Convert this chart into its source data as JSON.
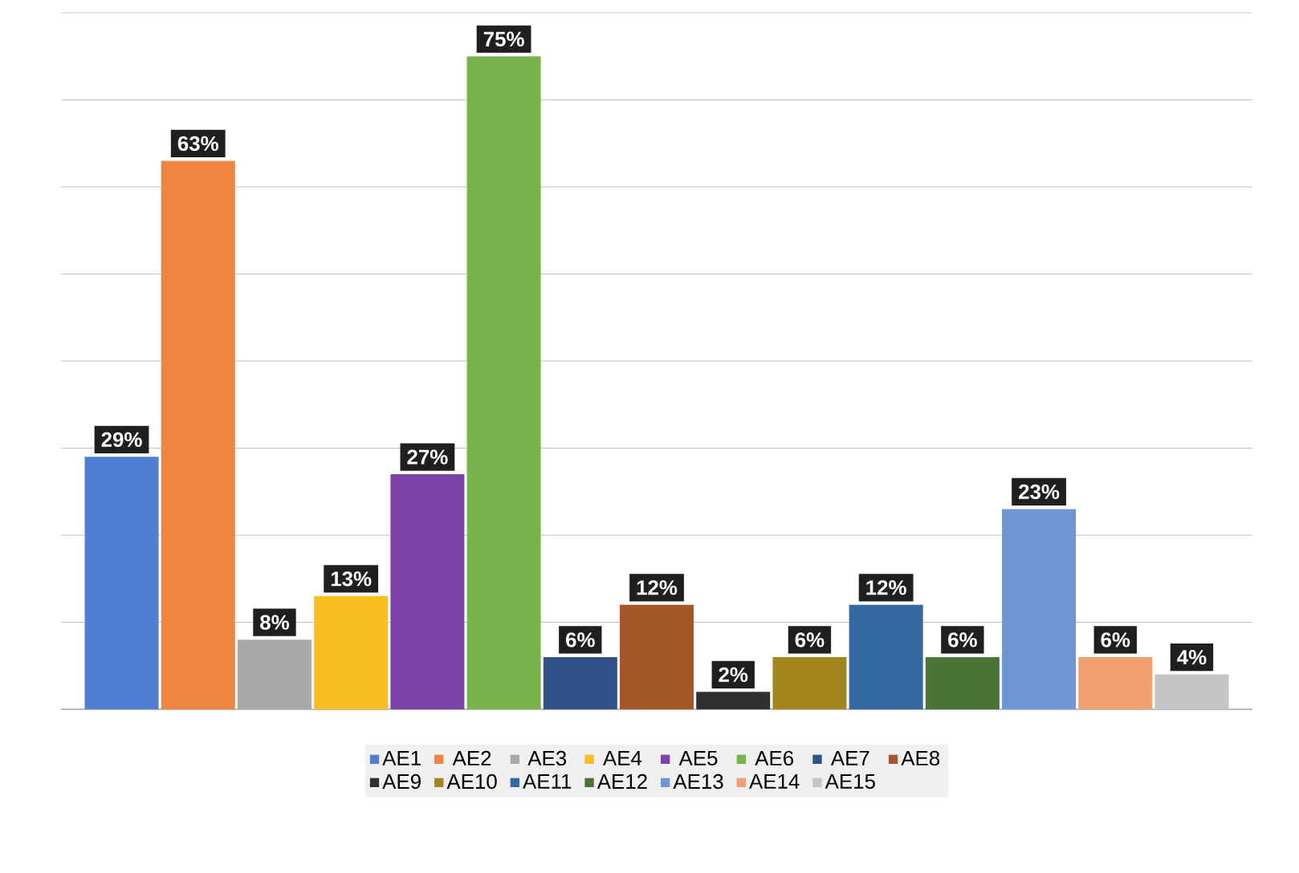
{
  "chart_data": {
    "type": "bar",
    "categories": [
      null
    ],
    "series": [
      {
        "name": "AE1",
        "color": "#4f7fd3",
        "values": [
          29
        ],
        "value_labels": [
          "29%"
        ]
      },
      {
        "name": "AE2",
        "color": "#ee8642",
        "values": [
          63
        ],
        "value_labels": [
          "63%"
        ]
      },
      {
        "name": "AE3",
        "color": "#a9a9a9",
        "values": [
          8
        ],
        "value_labels": [
          "8%"
        ]
      },
      {
        "name": "AE4",
        "color": "#f7bf22",
        "values": [
          13
        ],
        "value_labels": [
          "13%"
        ]
      },
      {
        "name": "AE5",
        "color": "#7d43a8",
        "values": [
          27
        ],
        "value_labels": [
          "27%"
        ]
      },
      {
        "name": "AE6",
        "color": "#78b24c",
        "values": [
          75
        ],
        "value_labels": [
          "75%"
        ]
      },
      {
        "name": "AE7",
        "color": "#2f5289",
        "values": [
          6
        ],
        "value_labels": [
          "6%"
        ]
      },
      {
        "name": "AE8",
        "color": "#a5572a",
        "values": [
          12
        ],
        "value_labels": [
          "12%"
        ]
      },
      {
        "name": "AE9",
        "color": "#303030",
        "values": [
          2
        ],
        "value_labels": [
          "2%"
        ]
      },
      {
        "name": "AE10",
        "color": "#a3851e",
        "values": [
          6
        ],
        "value_labels": [
          "6%"
        ]
      },
      {
        "name": "AE11",
        "color": "#33699f",
        "values": [
          12
        ],
        "value_labels": [
          "12%"
        ]
      },
      {
        "name": "AE12",
        "color": "#4a7338",
        "values": [
          6
        ],
        "value_labels": [
          "6%"
        ]
      },
      {
        "name": "AE13",
        "color": "#6f95d5",
        "values": [
          23
        ],
        "value_labels": [
          "23%"
        ]
      },
      {
        "name": "AE14",
        "color": "#f0a070",
        "values": [
          6
        ],
        "value_labels": [
          "6%"
        ]
      },
      {
        "name": "AE15",
        "color": "#c4c4c4",
        "values": [
          4
        ],
        "value_labels": [
          "4%"
        ]
      }
    ],
    "ylim": [
      0,
      80
    ],
    "yticks": [
      {
        "value": 0,
        "label": null
      },
      {
        "value": 10,
        "label": null
      },
      {
        "value": 20,
        "label": null
      },
      {
        "value": 30,
        "label": null
      },
      {
        "value": 40,
        "label": null
      },
      {
        "value": 50,
        "label": null
      },
      {
        "value": 60,
        "label": null
      },
      {
        "value": 70,
        "label": null
      },
      {
        "value": 80,
        "label": null
      }
    ],
    "grid": "y",
    "legend": "bottom"
  }
}
